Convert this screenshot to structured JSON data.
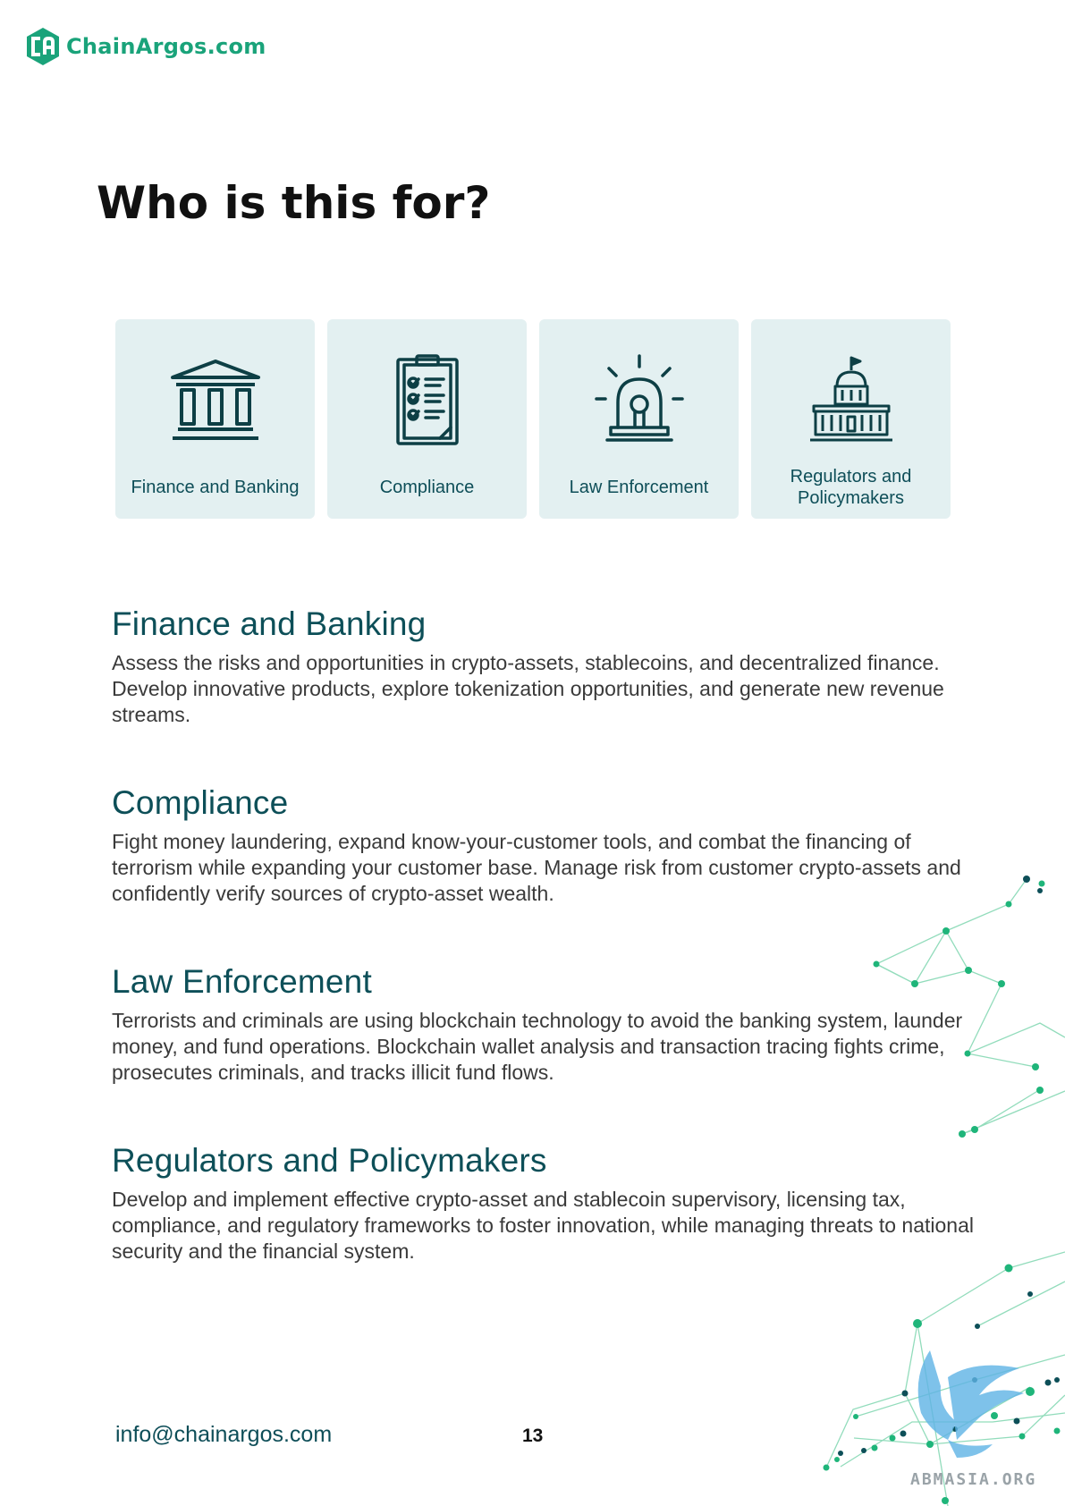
{
  "header": {
    "logo_text": "ChainArgos.com",
    "brand_color": "#1aa37a"
  },
  "page": {
    "title": "Who is this for?"
  },
  "cards": [
    {
      "label": "Finance and Banking",
      "icon": "bank-icon"
    },
    {
      "label": "Compliance",
      "icon": "checklist-icon"
    },
    {
      "label": "Law Enforcement",
      "icon": "siren-icon"
    },
    {
      "label": "Regulators and Policymakers",
      "icon": "capitol-icon"
    }
  ],
  "sections": [
    {
      "heading": "Finance and Banking",
      "body": "Assess the risks and opportunities in crypto-assets, stablecoins, and decentralized finance. Develop innovative products, explore tokenization opportunities, and generate new revenue streams."
    },
    {
      "heading": "Compliance",
      "body": "Fight money laundering, expand know-your-customer tools, and combat the financing of terrorism while expanding your customer base. Manage risk from customer crypto-assets and confidently verify sources of crypto-asset wealth."
    },
    {
      "heading": "Law Enforcement",
      "body": "Terrorists and criminals are using blockchain technology to avoid the banking system, launder money, and fund operations. Blockchain wallet analysis and transaction tracing fights crime, prosecutes criminals, and tracks illicit fund flows."
    },
    {
      "heading": "Regulators and Policymakers",
      "body": "Develop and implement effective crypto-asset and stablecoin supervisory, licensing tax, compliance, and regulatory frameworks to foster innovation, while managing threats to national security and the financial system."
    }
  ],
  "footer": {
    "email": "info@chainargos.com",
    "page_number": "13"
  },
  "watermark": {
    "text": "ABMASIA.ORG"
  },
  "colors": {
    "card_bg": "#e3f0f1",
    "heading": "#0d4f58",
    "network_green": "#1fb57a",
    "network_dark": "#0d4f58"
  }
}
